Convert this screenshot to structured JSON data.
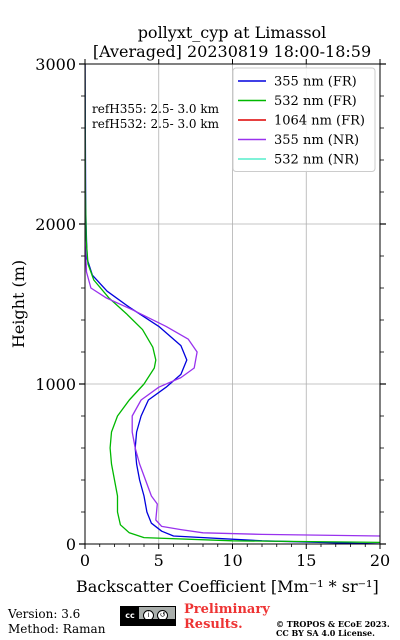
{
  "title": {
    "line1": "pollyxt_cyp at Limassol",
    "line2": "[Averaged] 20230819 18:00-18:59"
  },
  "annotations": {
    "refH355": "refH355:  2.5- 3.0 km",
    "refH532": "refH532:  2.5- 3.0 km"
  },
  "footer": {
    "version": "Version: 3.6",
    "method": "Method: Raman",
    "preliminary_line1": "Preliminary",
    "preliminary_line2": "Results.",
    "copyright_line1": "© TROPOS & ECoE 2023.",
    "copyright_line2": "CC BY SA 4.0 License.",
    "license_badge": "cc",
    "license_badge_subtext": "BY   SA"
  },
  "chart_data": {
    "type": "line",
    "title": "pollyxt_cyp at Limassol [Averaged] 20230819 18:00-18:59",
    "xlabel": "Backscatter Coefficient [Mm⁻¹ * sr⁻¹]",
    "ylabel": "Height (m)",
    "xlim": [
      0,
      20
    ],
    "ylim": [
      0,
      3000
    ],
    "xticks": [
      "0",
      "5",
      "10",
      "15",
      "20"
    ],
    "yticks": [
      "0",
      "1000",
      "2000",
      "3000"
    ],
    "grid": true,
    "legend_position": "top-right",
    "series": [
      {
        "name": "355 nm (FR)",
        "color": "#0000dd",
        "points": [
          [
            20,
            0
          ],
          [
            12,
            20
          ],
          [
            6,
            50
          ],
          [
            5.2,
            80
          ],
          [
            4.5,
            130
          ],
          [
            4.2,
            200
          ],
          [
            4.0,
            300
          ],
          [
            3.7,
            400
          ],
          [
            3.5,
            500
          ],
          [
            3.4,
            600
          ],
          [
            3.5,
            700
          ],
          [
            3.8,
            800
          ],
          [
            4.3,
            900
          ],
          [
            5.5,
            980
          ],
          [
            6.5,
            1060
          ],
          [
            6.9,
            1150
          ],
          [
            6.5,
            1240
          ],
          [
            5.0,
            1360
          ],
          [
            3.0,
            1480
          ],
          [
            1.5,
            1580
          ],
          [
            0.5,
            1680
          ],
          [
            0.15,
            1780
          ],
          [
            0.1,
            1900
          ],
          [
            0.05,
            2100
          ],
          [
            0.03,
            2500
          ],
          [
            0,
            3000
          ]
        ]
      },
      {
        "name": "532 nm (FR)",
        "color": "#00b800",
        "points": [
          [
            20,
            10
          ],
          [
            10,
            20
          ],
          [
            4,
            40
          ],
          [
            3,
            70
          ],
          [
            2.4,
            120
          ],
          [
            2.2,
            200
          ],
          [
            2.2,
            300
          ],
          [
            2.0,
            400
          ],
          [
            1.8,
            500
          ],
          [
            1.7,
            600
          ],
          [
            1.8,
            700
          ],
          [
            2.2,
            800
          ],
          [
            3.0,
            900
          ],
          [
            4.0,
            1000
          ],
          [
            4.7,
            1100
          ],
          [
            4.8,
            1150
          ],
          [
            4.6,
            1230
          ],
          [
            3.9,
            1340
          ],
          [
            2.8,
            1440
          ],
          [
            1.6,
            1540
          ],
          [
            0.6,
            1650
          ],
          [
            0.2,
            1750
          ],
          [
            0.08,
            1900
          ],
          [
            0.03,
            2200
          ],
          [
            0,
            3000
          ]
        ]
      },
      {
        "name": "1064 nm (FR)",
        "color": "#dd0000",
        "points": []
      },
      {
        "name": "355 nm (NR)",
        "color": "#9932ee",
        "points": [
          [
            20,
            50
          ],
          [
            12,
            60
          ],
          [
            8,
            70
          ],
          [
            6.5,
            90
          ],
          [
            5.2,
            110
          ],
          [
            4.8,
            150
          ],
          [
            4.9,
            250
          ],
          [
            4.5,
            300
          ],
          [
            4.1,
            400
          ],
          [
            3.7,
            500
          ],
          [
            3.4,
            600
          ],
          [
            3.2,
            700
          ],
          [
            3.2,
            800
          ],
          [
            3.8,
            900
          ],
          [
            5.0,
            980
          ],
          [
            6.5,
            1040
          ],
          [
            7.4,
            1100
          ],
          [
            7.6,
            1200
          ],
          [
            7.0,
            1280
          ],
          [
            5.5,
            1360
          ],
          [
            3.3,
            1460
          ],
          [
            1.4,
            1540
          ],
          [
            0.4,
            1600
          ],
          [
            0.1,
            1700
          ],
          [
            0,
            1900
          ],
          [
            0,
            3000
          ]
        ]
      },
      {
        "name": "532 nm (NR)",
        "color": "#55eecc",
        "points": []
      }
    ]
  }
}
